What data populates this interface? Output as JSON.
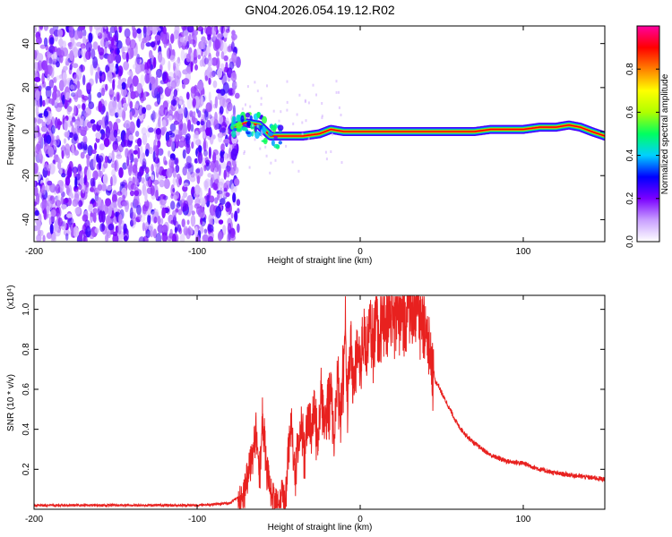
{
  "title": "GN04.2026.054.19.12.R02",
  "colors": {
    "snr_line": "#e8211f",
    "heat_purple": "#6a1fd6",
    "ridge": "#d8203a"
  },
  "chart_data": [
    {
      "type": "heatmap",
      "title": "GN04.2026.054.19.12.R02",
      "xlabel": "Height of straight line (km)",
      "ylabel": "Frequency (Hz)",
      "xlim": [
        -200,
        150
      ],
      "ylim": [
        -50,
        48
      ],
      "xticks": [
        -200,
        -100,
        0,
        100
      ],
      "yticks": [
        -40,
        -20,
        0,
        20,
        40
      ],
      "colorbar": {
        "label": "Normalized spectral amplitude",
        "range": [
          0,
          1
        ],
        "ticks": [
          "0.0",
          "0.2",
          "0.4",
          "0.6",
          "0.8"
        ],
        "colormap": [
          "#ffffff",
          "#c9a0ff",
          "#7a00ff",
          "#0000ff",
          "#00d0ff",
          "#00ff60",
          "#b0ff00",
          "#ffff00",
          "#ff8000",
          "#ff0000",
          "#ff00a0"
        ]
      },
      "noise_region_x": [
        -200,
        -78
      ],
      "ridge": {
        "x": [
          -78,
          -70,
          -62,
          -55,
          -45,
          -35,
          -25,
          -18,
          -10,
          0,
          20,
          40,
          60,
          70,
          80,
          90,
          100,
          110,
          120,
          128,
          135,
          142,
          150
        ],
        "frequency": [
          2,
          4,
          3,
          -2,
          -2,
          -2,
          -1,
          1,
          0,
          0,
          0,
          0,
          0,
          0,
          1,
          1,
          1,
          2,
          2,
          3,
          2,
          0,
          -2
        ]
      }
    },
    {
      "type": "line",
      "xlabel": "Height of straight line (km)",
      "ylabel": "SNR (10 * v/v)",
      "y_multiplier": "(x10⁴)",
      "xlim": [
        -200,
        150
      ],
      "ylim": [
        0,
        1.07
      ],
      "xticks": [
        -200,
        -100,
        0,
        100
      ],
      "yticks": [
        0.2,
        0.4,
        0.6,
        0.8,
        1.0
      ],
      "series": [
        {
          "name": "SNR",
          "x": [
            -200,
            -100,
            -80,
            -72,
            -67,
            -64,
            -62,
            -60,
            -58,
            -55,
            -52,
            -50,
            -48,
            -46,
            -44,
            -42,
            -40,
            -38,
            -36,
            -34,
            -32,
            -30,
            -28,
            -26,
            -24,
            -22,
            -20,
            -18,
            -16,
            -14,
            -12,
            -10,
            -9,
            -8,
            -6,
            -4,
            -2,
            0,
            2,
            4,
            6,
            8,
            10,
            12,
            14,
            16,
            18,
            20,
            22,
            24,
            26,
            28,
            30,
            32,
            34,
            36,
            38,
            40,
            42,
            44,
            46,
            48,
            50,
            55,
            60,
            65,
            70,
            75,
            80,
            90,
            100,
            110,
            120,
            130,
            140,
            150
          ],
          "y": [
            0.02,
            0.02,
            0.03,
            0.08,
            0.25,
            0.4,
            0.2,
            0.48,
            0.3,
            0.12,
            0.06,
            0.04,
            0.1,
            0.05,
            0.3,
            0.42,
            0.2,
            0.35,
            0.45,
            0.3,
            0.5,
            0.4,
            0.55,
            0.35,
            0.6,
            0.45,
            0.55,
            0.62,
            0.4,
            0.7,
            0.5,
            0.78,
            1.03,
            0.55,
            0.85,
            0.6,
            0.88,
            0.72,
            0.94,
            0.8,
            0.95,
            0.85,
            0.98,
            0.9,
            1.0,
            0.95,
            1.02,
            0.97,
            1.04,
            0.99,
            1.03,
            1.01,
            1.05,
            1.02,
            1.04,
            1.03,
            0.98,
            0.92,
            0.86,
            0.75,
            0.64,
            0.62,
            0.58,
            0.5,
            0.42,
            0.37,
            0.33,
            0.3,
            0.27,
            0.24,
            0.23,
            0.2,
            0.18,
            0.17,
            0.16,
            0.15
          ]
        }
      ]
    }
  ]
}
